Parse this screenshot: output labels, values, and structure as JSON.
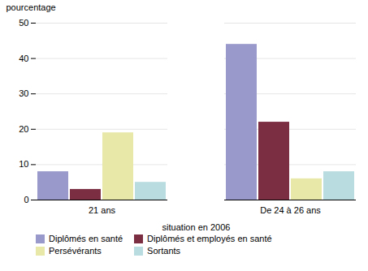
{
  "chart_data": {
    "type": "bar",
    "categories": [
      "21 ans",
      "De 24 à 26 ans"
    ],
    "series": [
      {
        "name": "Diplômés en santé",
        "color": "#9999cc",
        "values": [
          8,
          44
        ]
      },
      {
        "name": "Diplômés et employés en santé",
        "color": "#7b2d42",
        "values": [
          3,
          22
        ]
      },
      {
        "name": "Persévérants",
        "color": "#e8e8a8",
        "values": [
          19,
          6
        ]
      },
      {
        "name": "Sortants",
        "color": "#b8dce0",
        "values": [
          5,
          8
        ]
      }
    ],
    "xlabel": "situation en 2006",
    "ylabel": "pourcentage",
    "ylim": [
      0,
      50
    ],
    "yticks": [
      0,
      10,
      20,
      30,
      40,
      50
    ],
    "grid": true,
    "legend": "bottom"
  }
}
